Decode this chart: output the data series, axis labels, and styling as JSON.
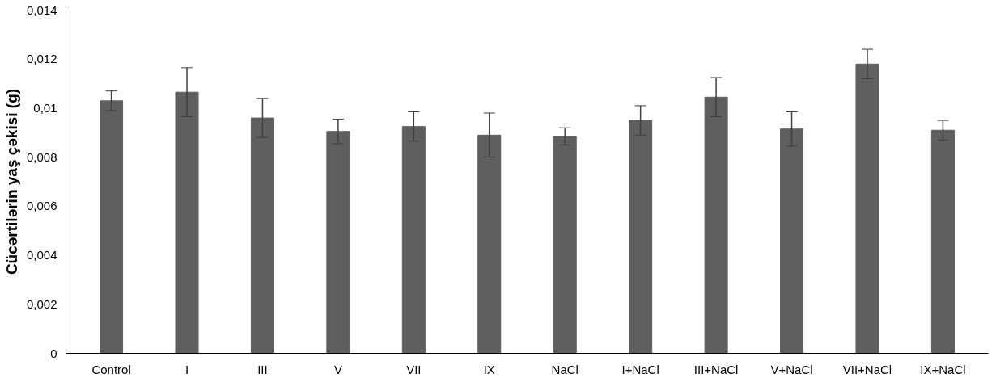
{
  "chart_data": {
    "type": "bar",
    "ylabel": "Cücərtilərin yaş çəkisi (g)",
    "categories": [
      "Control",
      "I",
      "III",
      "V",
      "VII",
      "IX",
      "NaCl",
      "I+NaCl",
      "III+NaCl",
      "V+NaCl",
      "VII+NaCl",
      "IX+NaCl"
    ],
    "values": [
      0.0103,
      0.01065,
      0.0096,
      0.00905,
      0.00925,
      0.0089,
      0.00885,
      0.0095,
      0.01045,
      0.00915,
      0.0118,
      0.0091
    ],
    "errors": [
      0.0004,
      0.001,
      0.0008,
      0.0005,
      0.0006,
      0.0009,
      0.00035,
      0.0006,
      0.0008,
      0.0007,
      0.0006,
      0.0004
    ],
    "color": "#5f5f5f",
    "ylim": [
      0,
      0.014
    ],
    "yticks": [
      {
        "value": 0,
        "label": "0"
      },
      {
        "value": 0.002,
        "label": "0,002"
      },
      {
        "value": 0.004,
        "label": "0,004"
      },
      {
        "value": 0.006,
        "label": "0,006"
      },
      {
        "value": 0.008,
        "label": "0,008"
      },
      {
        "value": 0.01,
        "label": "0,01"
      },
      {
        "value": 0.012,
        "label": "0,012"
      },
      {
        "value": 0.014,
        "label": "0,014"
      }
    ],
    "grid": false
  }
}
